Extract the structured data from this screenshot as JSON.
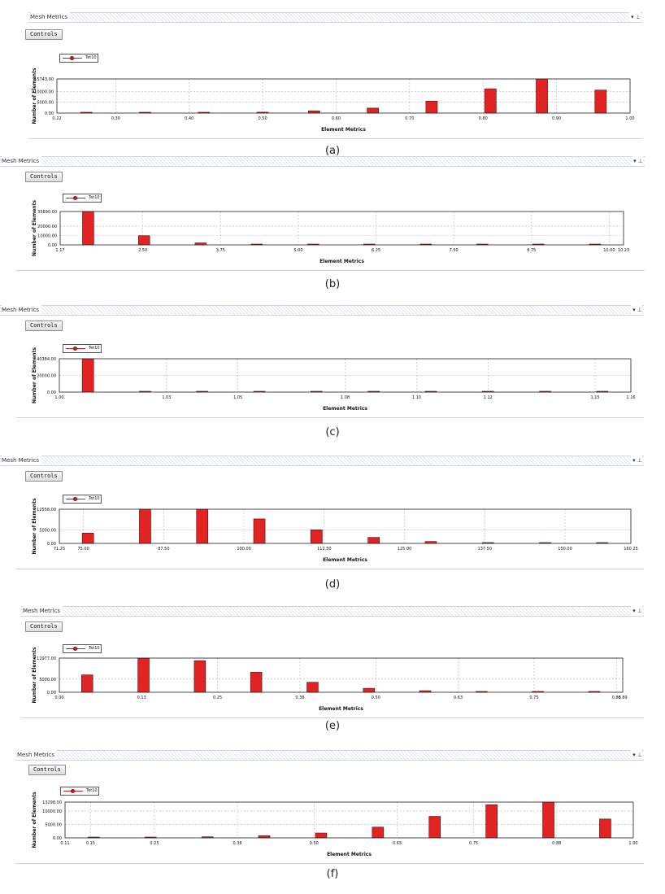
{
  "panels": [
    {
      "window_title": "Mesh Metrics",
      "title_icons": "▾ ⊥",
      "controls_label": "Controls",
      "caption": "(a)",
      "chart_data": {
        "type": "bar",
        "legend": [
          "Tet10"
        ],
        "xlabel": "Element Metrics",
        "ylabel": "Number of Elements",
        "x_ticks": [
          "0.22",
          "0.30",
          "0.40",
          "0.50",
          "0.60",
          "0.70",
          "0.80",
          "0.90",
          "1.00"
        ],
        "y_ticks": [
          "0.00",
          "5000.00",
          "10000.00",
          "15743.00"
        ],
        "x_range": [
          0.22,
          1.0
        ],
        "y_range": [
          0,
          15743
        ],
        "series": [
          {
            "x": [
              0.26,
              0.34,
              0.42,
              0.5,
              0.57,
              0.65,
              0.73,
              0.81,
              0.88,
              0.96
            ],
            "values": [
              20,
              60,
              150,
              400,
              1000,
              2300,
              5500,
              11200,
              15743,
              10600
            ]
          }
        ],
        "color": "#e02424"
      }
    },
    {
      "window_title": "Mesh Metrics",
      "title_icons": "▾ ⊥",
      "controls_label": "Controls",
      "caption": "(b)",
      "chart_data": {
        "type": "bar",
        "legend": [
          "Tet10"
        ],
        "xlabel": "Element Metrics",
        "ylabel": "Number of Elements",
        "x_ticks": [
          "1.17",
          "2.50",
          "3.75",
          "5.00",
          "6.25",
          "7.50",
          "8.75",
          "10.00",
          "10.23"
        ],
        "y_ticks": [
          "0.00",
          "10000.00",
          "20000.00",
          "35690.00"
        ],
        "x_ticks_pos": [
          1.17,
          2.5,
          3.75,
          5.0,
          6.25,
          7.5,
          8.75,
          10.0,
          10.23
        ],
        "x_range": [
          1.17,
          10.23
        ],
        "y_range": [
          0,
          35690
        ],
        "series": [
          {
            "x": [
              1.62,
              2.52,
              3.43,
              4.33,
              5.24,
              6.14,
              7.05,
              7.96,
              8.86,
              9.77
            ],
            "values": [
              35690,
              9800,
              2100,
              500,
              150,
              60,
              30,
              15,
              10,
              8
            ]
          }
        ],
        "color": "#e02424"
      }
    },
    {
      "window_title": "Mesh Metrics",
      "title_icons": "▾ ⊥",
      "controls_label": "Controls",
      "caption": "(c)",
      "chart_data": {
        "type": "bar",
        "legend": [
          "Tet10"
        ],
        "xlabel": "Element Metrics",
        "ylabel": "Number of Elements",
        "x_ticks": [
          "1.00",
          "1.03",
          "1.05",
          "1.08",
          "1.10",
          "1.12",
          "1.15",
          "1.16"
        ],
        "x_ticks_pos": [
          1.0,
          1.03,
          1.05,
          1.08,
          1.1,
          1.12,
          1.15,
          1.16
        ],
        "y_ticks": [
          "0.00",
          "20000.00",
          "40384.00"
        ],
        "x_range": [
          1.0,
          1.16
        ],
        "y_range": [
          0,
          40384
        ],
        "series": [
          {
            "x": [
              1.008,
              1.024,
              1.04,
              1.056,
              1.072,
              1.088,
              1.104,
              1.12,
              1.136,
              1.152
            ],
            "values": [
              40384,
              900,
              300,
              150,
              80,
              40,
              20,
              10,
              5,
              5
            ]
          }
        ],
        "color": "#e02424"
      }
    },
    {
      "window_title": "Mesh Metrics",
      "title_icons": "▾ ⊥",
      "controls_label": "Controls",
      "caption": "(d)",
      "chart_data": {
        "type": "bar",
        "legend": [
          "Tet10"
        ],
        "xlabel": "Element Metrics",
        "ylabel": "Number of Elements",
        "x_ticks": [
          "71.25",
          "75.00",
          "87.50",
          "100.00",
          "112.50",
          "125.00",
          "137.50",
          "150.00",
          "160.25"
        ],
        "x_ticks_pos": [
          71.25,
          75.0,
          87.5,
          100.0,
          112.5,
          125.0,
          137.5,
          150.0,
          160.25
        ],
        "y_ticks": [
          "0.00",
          "5000.00",
          "12558.00"
        ],
        "x_range": [
          71.25,
          160.25
        ],
        "y_range": [
          0,
          12558
        ],
        "series": [
          {
            "x": [
              75.7,
              84.6,
              93.5,
              102.4,
              111.3,
              120.2,
              129.1,
              138.0,
              146.9,
              155.8
            ],
            "values": [
              3800,
              12558,
              12558,
              9000,
              5000,
              2200,
              700,
              250,
              80,
              30
            ]
          }
        ],
        "color": "#e02424"
      }
    },
    {
      "window_title": "Mesh Metrics",
      "title_icons": "▾ ⊥",
      "controls_label": "Controls",
      "caption": "(e)",
      "chart_data": {
        "type": "bar",
        "legend": [
          "Tet10"
        ],
        "xlabel": "Element Metrics",
        "ylabel": "Number of Elements",
        "x_ticks": [
          "0.00",
          "0.13",
          "0.25",
          "0.38",
          "0.50",
          "0.63",
          "0.75",
          "0.88",
          "0.89"
        ],
        "x_ticks_pos": [
          0.0,
          0.13,
          0.25,
          0.38,
          0.5,
          0.63,
          0.75,
          0.88,
          0.89
        ],
        "y_ticks": [
          "0.00",
          "5000.00",
          "12977.00"
        ],
        "x_range": [
          0.0,
          0.89
        ],
        "y_range": [
          0,
          12977
        ],
        "series": [
          {
            "x": [
              0.044,
              0.133,
              0.222,
              0.311,
              0.4,
              0.489,
              0.578,
              0.667,
              0.756,
              0.845
            ],
            "values": [
              6600,
              12977,
              12000,
              7600,
              3800,
              1500,
              600,
              200,
              60,
              20
            ]
          }
        ],
        "color": "#e02424"
      }
    },
    {
      "window_title": "Mesh Metrics",
      "title_icons": "▾ ⊥",
      "controls_label": "Controls",
      "caption": "(f)",
      "chart_data": {
        "type": "bar",
        "legend": [
          "Tet10"
        ],
        "xlabel": "Element Metrics",
        "ylabel": "Number of Elements",
        "x_ticks": [
          "0.11",
          "0.15",
          "0.25",
          "0.38",
          "0.50",
          "0.63",
          "0.75",
          "0.88",
          "1.00"
        ],
        "x_ticks_pos": [
          0.11,
          0.15,
          0.25,
          0.38,
          0.5,
          0.63,
          0.75,
          0.88,
          1.0
        ],
        "y_ticks": [
          "0.00",
          "5000.00",
          "10000.00",
          "13298.00"
        ],
        "x_range": [
          0.11,
          1.0
        ],
        "y_range": [
          0,
          13298
        ],
        "series": [
          {
            "x": [
              0.155,
              0.244,
              0.333,
              0.422,
              0.511,
              0.6,
              0.689,
              0.778,
              0.867,
              0.956
            ],
            "values": [
              50,
              150,
              400,
              800,
              1800,
              4000,
              8000,
              12300,
              13298,
              7000
            ]
          }
        ],
        "color": "#e02424"
      }
    }
  ]
}
